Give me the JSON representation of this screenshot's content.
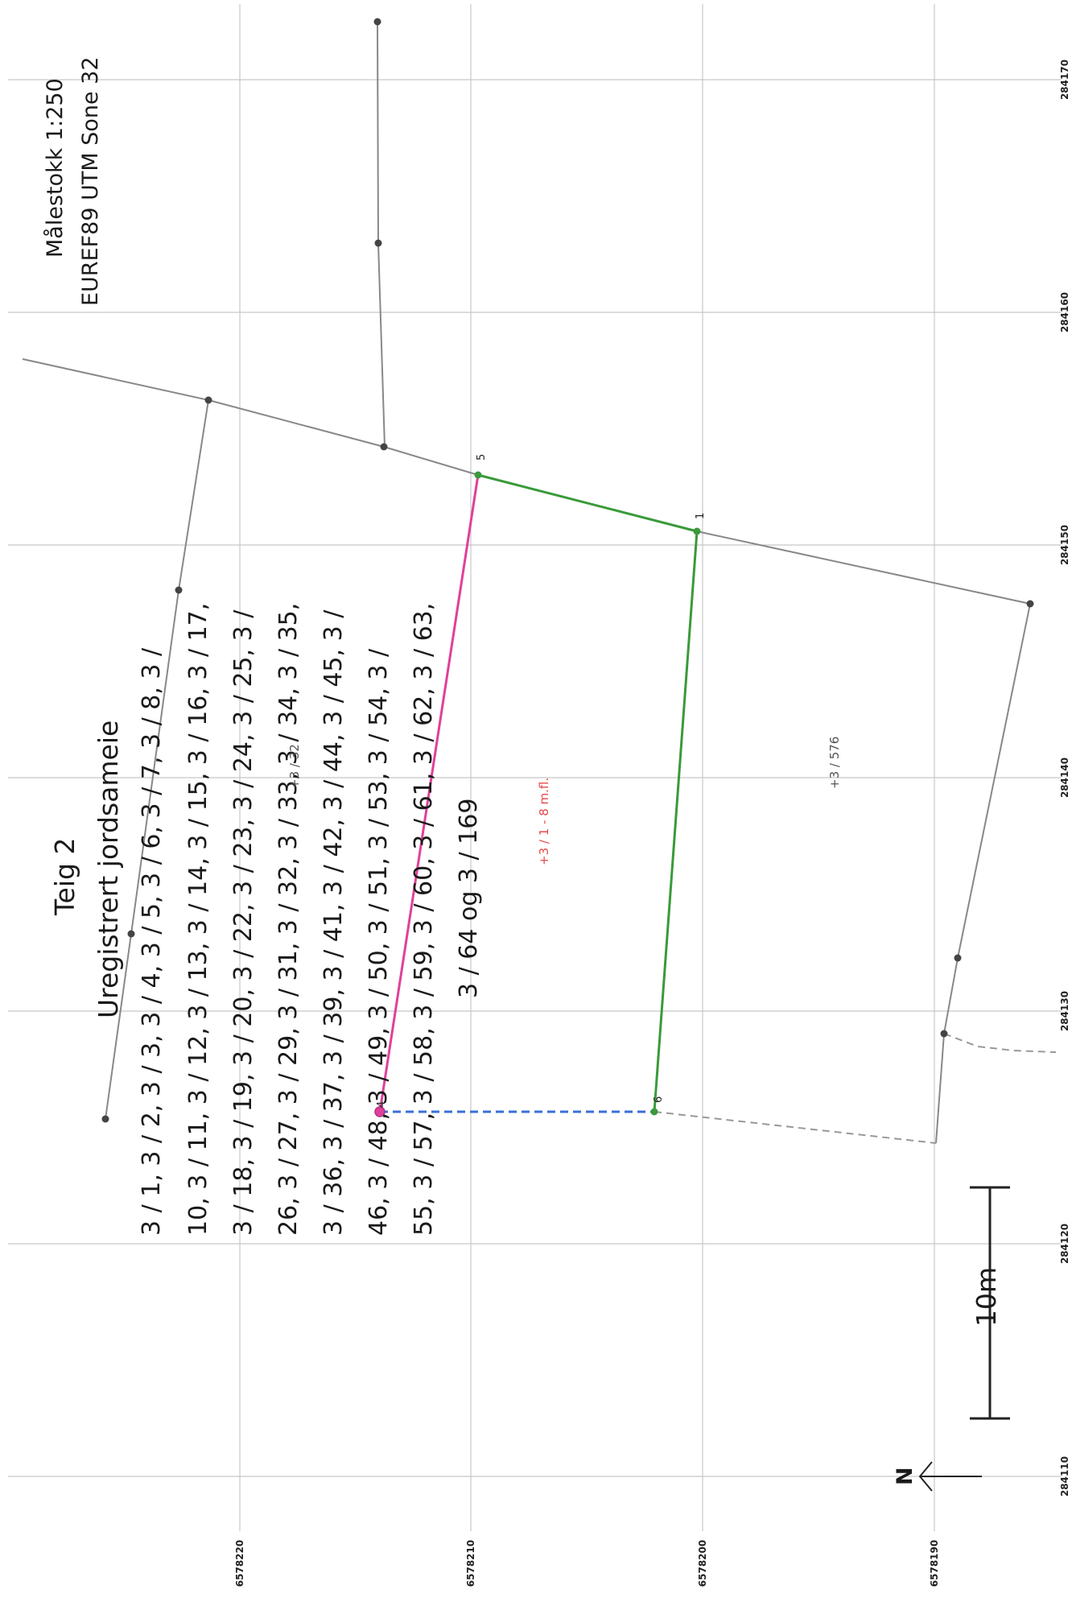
{
  "header": {
    "scale": "Målestokk 1:250",
    "crs": "EUREF89 UTM Sone 32"
  },
  "parcel": {
    "teig": "Teig 2",
    "title": "Uregistrert jordsameie",
    "lines": [
      "3 / 1, 3 / 2, 3 / 3, 3 / 4, 3 / 5, 3 / 6, 3 / 7, 3 / 8, 3 /",
      "10, 3 / 11, 3 / 12, 3 / 13, 3 / 14, 3 / 15, 3 / 16, 3 / 17,",
      "3 / 18, 3 / 19, 3 / 20, 3 / 22, 3 / 23, 3 / 24, 3 / 25, 3 /",
      "26, 3 / 27, 3 / 29, 3 / 31, 3 / 32, 3 / 33, 3 / 34, 3 / 35,",
      "3 / 36, 3 / 37, 3 / 39, 3 / 41, 3 / 42, 3 / 44, 3 / 45, 3 /",
      "46, 3 / 48, 3 / 49, 3 / 50, 3 / 51, 3 / 53, 3 / 54, 3 /",
      "55, 3 / 57, 3 / 58, 3 / 59, 3 / 60, 3 / 61, 3 / 62, 3 / 63,",
      "3 / 64 og 3 / 169"
    ]
  },
  "labels": {
    "red": "+3 / 1 - 8 m.fl.",
    "gray": "+3 / 576",
    "overlap": "+3 / 32"
  },
  "point_numbers": [
    "5",
    "1",
    "6",
    "4"
  ],
  "scalebar_label": "10m",
  "north": "N",
  "coords": {
    "easting": [
      "284170",
      "284160",
      "284150",
      "284140",
      "284130",
      "284120",
      "284110"
    ],
    "northing": [
      "6578220",
      "6578210",
      "6578200",
      "6578190"
    ]
  },
  "colors": {
    "green": "#3a9a3a",
    "magenta": "#e0409a",
    "blue": "#3a6fd8",
    "red": "#e84a4a",
    "line": "#888888"
  }
}
